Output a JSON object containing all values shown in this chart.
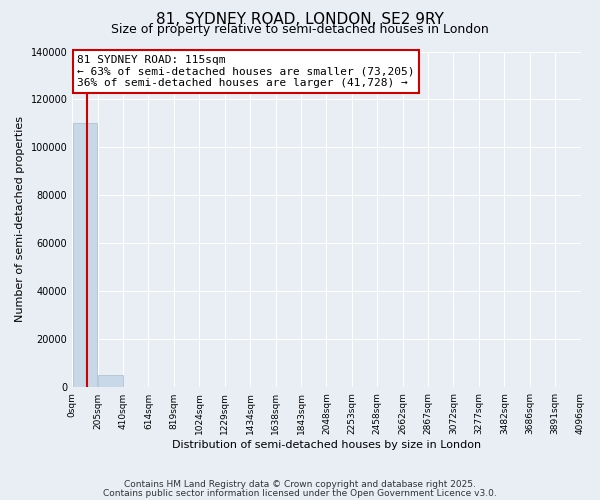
{
  "title": "81, SYDNEY ROAD, LONDON, SE2 9RY",
  "subtitle": "Size of property relative to semi-detached houses in London",
  "xlabel": "Distribution of semi-detached houses by size in London",
  "ylabel": "Number of semi-detached properties",
  "property_size": 115,
  "property_label": "81 SYDNEY ROAD: 115sqm",
  "annotation_line1": "← 63% of semi-detached houses are smaller (73,205)",
  "annotation_line2": "36% of semi-detached houses are larger (41,728) →",
  "ylim": [
    0,
    140000
  ],
  "yticks": [
    0,
    20000,
    40000,
    60000,
    80000,
    100000,
    120000,
    140000
  ],
  "bin_edges": [
    0,
    205,
    410,
    614,
    819,
    1024,
    1229,
    1434,
    1638,
    1843,
    2048,
    2253,
    2458,
    2662,
    2867,
    3072,
    3277,
    3482,
    3686,
    3891,
    4096
  ],
  "bin_labels": [
    "0sqm",
    "205sqm",
    "410sqm",
    "614sqm",
    "819sqm",
    "1024sqm",
    "1229sqm",
    "1434sqm",
    "1638sqm",
    "1843sqm",
    "2048sqm",
    "2253sqm",
    "2458sqm",
    "2662sqm",
    "2867sqm",
    "3072sqm",
    "3277sqm",
    "3482sqm",
    "3686sqm",
    "3891sqm",
    "4096sqm"
  ],
  "bar_heights": [
    110000,
    5000,
    200,
    100,
    50,
    30,
    20,
    15,
    10,
    8,
    6,
    5,
    4,
    3,
    3,
    2,
    2,
    2,
    1,
    1
  ],
  "bar_color": "#c8d8e8",
  "bar_edge_color": "#a8bece",
  "red_line_color": "#cc0000",
  "annotation_box_color": "#cc0000",
  "background_color": "#e8eef4",
  "grid_color": "#ffffff",
  "footer_line1": "Contains HM Land Registry data © Crown copyright and database right 2025.",
  "footer_line2": "Contains public sector information licensed under the Open Government Licence v3.0.",
  "title_fontsize": 11,
  "subtitle_fontsize": 9,
  "axis_label_fontsize": 8,
  "tick_fontsize": 7,
  "annotation_fontsize": 8
}
